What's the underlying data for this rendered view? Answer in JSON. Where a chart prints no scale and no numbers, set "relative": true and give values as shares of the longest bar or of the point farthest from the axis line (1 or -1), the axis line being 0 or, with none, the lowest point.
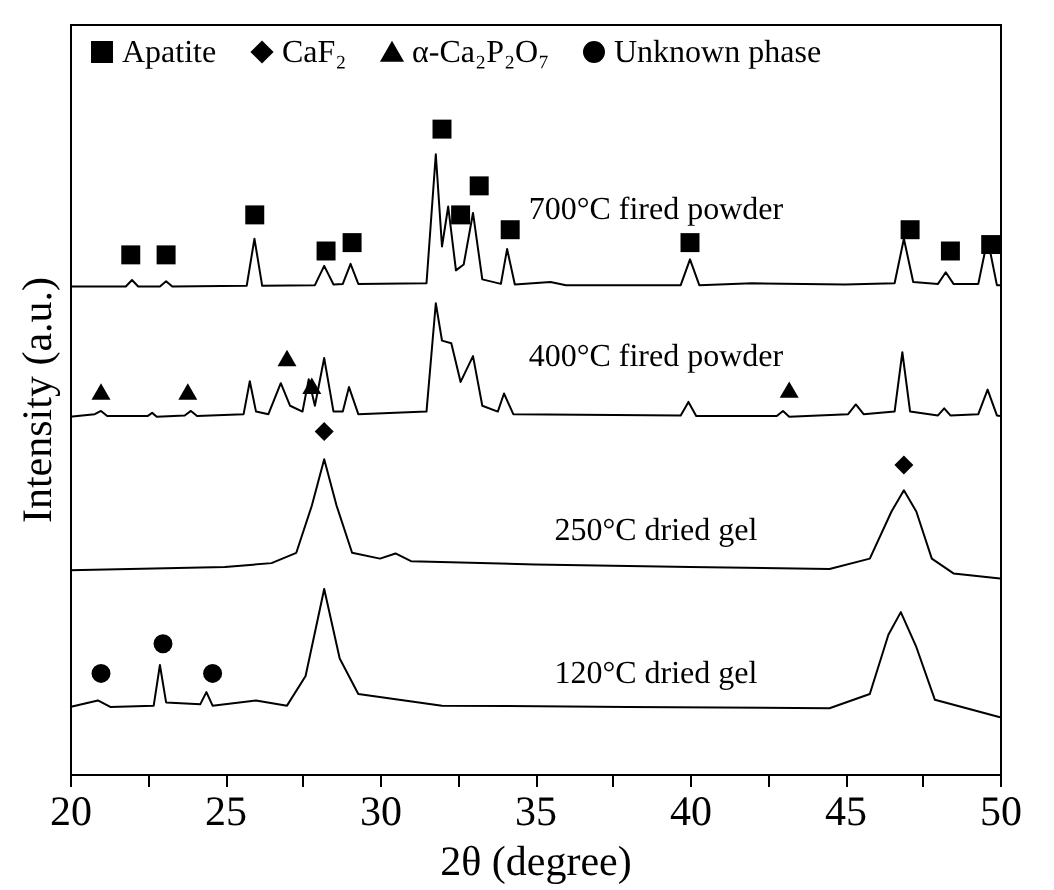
{
  "chart_data": {
    "type": "line",
    "relative": true,
    "xlabel": "2θ (degree)",
    "ylabel": "Intensity (a.u.)",
    "xlim": [
      20,
      50
    ],
    "xticks": [
      20,
      {
        "value": 22.5,
        "label": null
      },
      25,
      {
        "value": 27.5,
        "label": null
      },
      30,
      {
        "value": 32.5,
        "label": null
      },
      35,
      {
        "value": 37.5,
        "label": null
      },
      40,
      {
        "value": 42.5,
        "label": null
      },
      45,
      {
        "value": 47.5,
        "label": null
      },
      50
    ],
    "grid": false,
    "legend": "top",
    "line_style": "solid",
    "series": [
      {
        "color": "#000000",
        "marker": "none",
        "x": [
          20,
          21.8,
          22,
          22.2,
          22.9,
          23.1,
          23.3,
          25.7,
          25.95,
          26.2,
          27.9,
          28.2,
          28.5,
          28.8,
          29.05,
          29.3,
          31.5,
          31.8,
          32.0,
          32.2,
          32.45,
          32.7,
          33.0,
          33.3,
          33.9,
          34.1,
          34.35,
          35.5,
          36,
          39.7,
          40.0,
          40.3,
          42,
          45,
          46.6,
          46.9,
          47.2,
          48.0,
          48.25,
          48.5,
          49.3,
          49.6,
          49.9,
          50
        ],
        "values": [
          0.756,
          0.756,
          0.766,
          0.756,
          0.756,
          0.764,
          0.756,
          0.757,
          0.83,
          0.757,
          0.758,
          0.788,
          0.759,
          0.76,
          0.791,
          0.76,
          0.761,
          0.961,
          0.818,
          0.88,
          0.781,
          0.79,
          0.87,
          0.767,
          0.76,
          0.814,
          0.759,
          0.763,
          0.758,
          0.758,
          0.798,
          0.758,
          0.761,
          0.759,
          0.761,
          0.83,
          0.763,
          0.76,
          0.778,
          0.76,
          0.76,
          0.83,
          0.758,
          0.758
        ]
      },
      {
        "color": "#000000",
        "marker": "none",
        "x": [
          20,
          20.8,
          21.0,
          21.2,
          22.5,
          22.65,
          22.8,
          23.7,
          23.9,
          24.1,
          25.6,
          25.8,
          26.0,
          26.4,
          26.8,
          27.1,
          27.5,
          27.7,
          27.9,
          28.2,
          28.5,
          28.8,
          29.0,
          29.3,
          31.5,
          31.8,
          32.0,
          32.3,
          32.6,
          33.0,
          33.3,
          33.8,
          34.0,
          34.3,
          39.7,
          39.95,
          40.2,
          42.8,
          43.0,
          43.2,
          45.1,
          45.35,
          45.6,
          46.6,
          46.85,
          47.1,
          48.0,
          48.2,
          48.4,
          49.3,
          49.6,
          49.9,
          50
        ],
        "values": [
          0.554,
          0.558,
          0.563,
          0.555,
          0.555,
          0.56,
          0.554,
          0.556,
          0.563,
          0.555,
          0.558,
          0.609,
          0.562,
          0.558,
          0.606,
          0.571,
          0.562,
          0.612,
          0.571,
          0.645,
          0.562,
          0.562,
          0.6,
          0.558,
          0.562,
          0.73,
          0.672,
          0.668,
          0.608,
          0.648,
          0.571,
          0.562,
          0.59,
          0.558,
          0.556,
          0.577,
          0.555,
          0.555,
          0.563,
          0.554,
          0.558,
          0.573,
          0.558,
          0.562,
          0.654,
          0.562,
          0.556,
          0.567,
          0.556,
          0.558,
          0.596,
          0.556,
          0.555
        ]
      },
      {
        "color": "#000000",
        "marker": "none",
        "x": [
          20,
          25,
          26.5,
          27.3,
          27.8,
          28.2,
          28.6,
          29.1,
          30,
          30.5,
          31,
          35,
          40,
          44.5,
          45.8,
          46.5,
          46.9,
          47.3,
          47.8,
          48.5,
          50
        ],
        "values": [
          0.316,
          0.321,
          0.327,
          0.343,
          0.416,
          0.488,
          0.416,
          0.343,
          0.334,
          0.342,
          0.33,
          0.325,
          0.321,
          0.318,
          0.334,
          0.407,
          0.44,
          0.407,
          0.334,
          0.311,
          0.303
        ]
      },
      {
        "color": "#000000",
        "marker": "none",
        "x": [
          20,
          20.9,
          21.3,
          22.7,
          22.9,
          23.1,
          24.2,
          24.4,
          24.6,
          26,
          27,
          27.6,
          28.2,
          28.7,
          29.3,
          32,
          38,
          44.5,
          45.8,
          46.4,
          46.8,
          47.3,
          47.9,
          50
        ],
        "values": [
          0.104,
          0.114,
          0.104,
          0.106,
          0.169,
          0.111,
          0.108,
          0.127,
          0.106,
          0.114,
          0.106,
          0.152,
          0.287,
          0.179,
          0.124,
          0.106,
          0.104,
          0.102,
          0.124,
          0.216,
          0.251,
          0.197,
          0.115,
          0.088
        ]
      },
      {
        "type": "scatter",
        "name": "Apatite",
        "color": "#000000",
        "marker": "square",
        "x": [
          21.96,
          23.1,
          25.96,
          28.26,
          29.1,
          32.0,
          32.6,
          33.2,
          34.2,
          40.0,
          47.1,
          48.4,
          49.7
        ],
        "values": [
          0.805,
          0.805,
          0.867,
          0.811,
          0.824,
          1.0,
          0.867,
          0.912,
          0.844,
          0.824,
          0.844,
          0.811,
          0.821
        ]
      },
      {
        "type": "scatter",
        "name": "CaF₂",
        "color": "#000000",
        "marker": "diamond",
        "x": [
          28.2,
          46.9
        ],
        "values": [
          0.531,
          0.479
        ]
      },
      {
        "type": "scatter",
        "name": "α-Ca₂P₂O₇",
        "color": "#000000",
        "marker": "triangle",
        "x": [
          21.0,
          23.8,
          27.0,
          27.8,
          43.2
        ],
        "values": [
          0.593,
          0.593,
          0.645,
          0.602,
          0.596
        ]
      },
      {
        "type": "scatter",
        "name": "Unknown phase",
        "color": "#000000",
        "marker": "circle",
        "x": [
          21.0,
          23.0,
          24.6
        ],
        "values": [
          0.156,
          0.202,
          0.156
        ]
      }
    ],
    "annotations": [
      "700°C fired powder",
      "400°C fired powder",
      "250°C dried gel",
      "120°C dried gel"
    ]
  }
}
